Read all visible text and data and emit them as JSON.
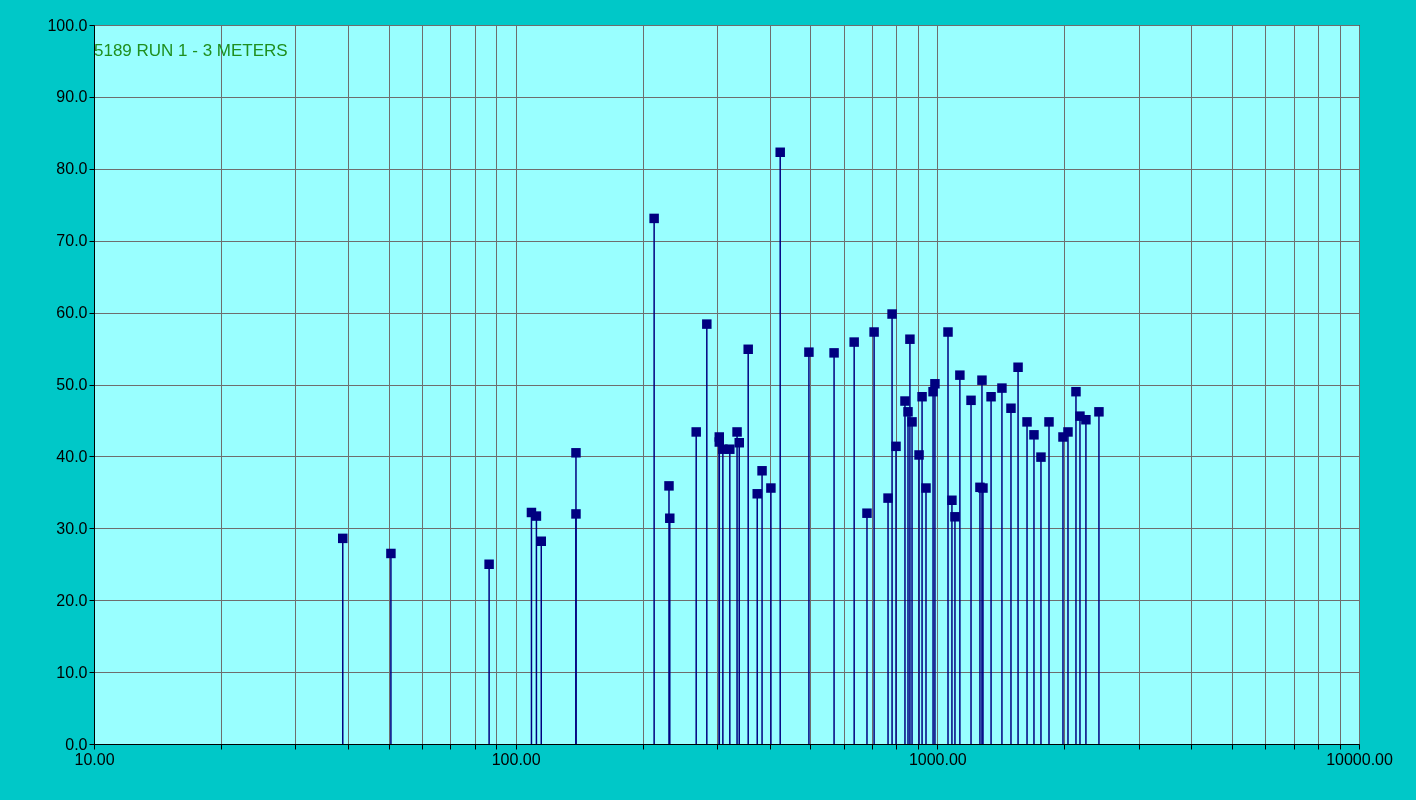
{
  "chart_data": {
    "type": "lollipop",
    "title": "5189 RUN 1 - 3 METERS",
    "marker": "square",
    "grid": true,
    "log": "x",
    "xlim": [
      10,
      10000
    ],
    "ylim": [
      0,
      100
    ],
    "xticks": [
      {
        "value": 10,
        "label": "10.00"
      },
      {
        "value": 20,
        "label": null
      },
      {
        "value": 30,
        "label": null
      },
      {
        "value": 40,
        "label": null
      },
      {
        "value": 50,
        "label": null
      },
      {
        "value": 60,
        "label": null
      },
      {
        "value": 70,
        "label": null
      },
      {
        "value": 80,
        "label": null
      },
      {
        "value": 90,
        "label": null
      },
      {
        "value": 100,
        "label": "100.00"
      },
      {
        "value": 200,
        "label": null
      },
      {
        "value": 300,
        "label": null
      },
      {
        "value": 400,
        "label": null
      },
      {
        "value": 500,
        "label": null
      },
      {
        "value": 600,
        "label": null
      },
      {
        "value": 700,
        "label": null
      },
      {
        "value": 800,
        "label": null
      },
      {
        "value": 900,
        "label": null
      },
      {
        "value": 1000,
        "label": "1000.00"
      },
      {
        "value": 2000,
        "label": null
      },
      {
        "value": 3000,
        "label": null
      },
      {
        "value": 4000,
        "label": null
      },
      {
        "value": 5000,
        "label": null
      },
      {
        "value": 6000,
        "label": null
      },
      {
        "value": 7000,
        "label": null
      },
      {
        "value": 8000,
        "label": null
      },
      {
        "value": 9000,
        "label": null
      },
      {
        "value": 10000,
        "label": "10000.00"
      }
    ],
    "yticks": [
      {
        "value": 0,
        "label": "0.0"
      },
      {
        "value": 10,
        "label": "10.0"
      },
      {
        "value": 20,
        "label": "20.0"
      },
      {
        "value": 30,
        "label": "30.0"
      },
      {
        "value": 40,
        "label": "40.0"
      },
      {
        "value": 50,
        "label": "50.0"
      },
      {
        "value": 60,
        "label": "60.0"
      },
      {
        "value": 70,
        "label": "70.0"
      },
      {
        "value": 80,
        "label": "80.0"
      },
      {
        "value": 90,
        "label": "90.0"
      },
      {
        "value": 100,
        "label": "100.0"
      }
    ],
    "series": [
      {
        "color": "#000080",
        "x": [
          38.9,
          50.6,
          86.5,
          109,
          112,
          115,
          139,
          139,
          213,
          231,
          232,
          268,
          284,
          304,
          304,
          310,
          322,
          335,
          339,
          356,
          374,
          384,
          403,
          424,
          496,
          569,
          635,
          681,
          708,
          764,
          781,
          798,
          838,
          852,
          861,
          871,
          905,
          920,
          940,
          977,
          987,
          1060,
          1083,
          1101,
          1131,
          1202,
          1262,
          1276,
          1283,
          1341,
          1423,
          1495,
          1554,
          1632,
          1695,
          1761,
          1840,
          1986,
          2041,
          2132,
          2179,
          2251,
          2417
        ],
        "values": [
          28.6,
          26.5,
          25.0,
          32.2,
          31.7,
          28.2,
          40.5,
          32.0,
          73.1,
          35.9,
          31.4,
          43.4,
          58.4,
          42.7,
          42.0,
          41.0,
          41.0,
          43.4,
          41.9,
          54.9,
          34.8,
          38.0,
          35.6,
          82.3,
          54.5,
          54.4,
          55.9,
          32.1,
          57.3,
          34.2,
          59.8,
          41.4,
          47.7,
          46.2,
          56.3,
          44.8,
          40.2,
          48.3,
          35.6,
          49.0,
          50.1,
          57.3,
          33.9,
          31.6,
          51.3,
          47.8,
          35.7,
          50.6,
          35.6,
          48.3,
          49.5,
          46.7,
          52.4,
          44.8,
          43.0,
          39.9,
          44.8,
          42.7,
          43.4,
          49.0,
          45.6,
          45.1,
          46.2
        ]
      }
    ]
  }
}
